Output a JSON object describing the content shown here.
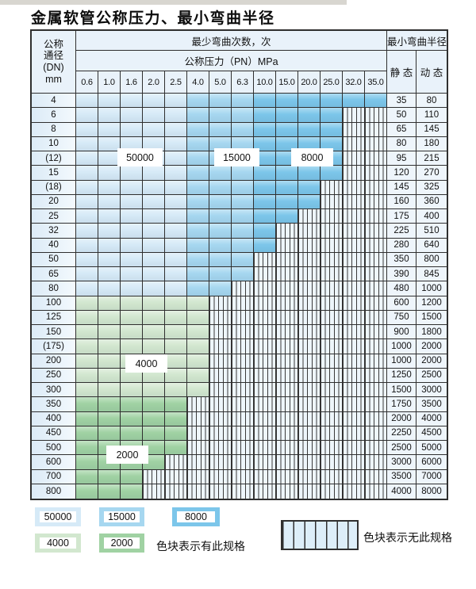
{
  "title": "金属软管公称压力、最小弯曲半径",
  "table": {
    "header": {
      "dn_lines": [
        "公称",
        "通径",
        "(DN)",
        "mm"
      ],
      "bend_cycles_label": "最少弯曲次数，次",
      "pressure_label": "公称压力（PN）MPa",
      "radius_label": "最小弯曲半径",
      "static_label": "静 态",
      "dynamic_label": "动 态"
    },
    "pressure_columns": [
      "0.6",
      "1.0",
      "1.6",
      "2.0",
      "2.5",
      "4.0",
      "5.0",
      "6.3",
      "10.0",
      "15.0",
      "20.0",
      "25.0",
      "32.0",
      "35.0"
    ],
    "blue_zones": [
      {
        "label": "50000",
        "from": 1,
        "to": 5
      },
      {
        "label": "15000",
        "from": 6,
        "to": 8
      },
      {
        "label": "8000",
        "from": 9,
        "to": 14
      }
    ],
    "rows": [
      {
        "dn": "4",
        "covered": 14,
        "scheme": "blue",
        "static": "35",
        "dynamic": "80"
      },
      {
        "dn": "6",
        "covered": 12,
        "scheme": "blue",
        "static": "50",
        "dynamic": "110"
      },
      {
        "dn": "8",
        "covered": 12,
        "scheme": "blue",
        "static": "65",
        "dynamic": "145"
      },
      {
        "dn": "10",
        "covered": 12,
        "scheme": "blue",
        "static": "80",
        "dynamic": "180"
      },
      {
        "dn": "(12)",
        "covered": 12,
        "scheme": "blue",
        "static": "95",
        "dynamic": "215"
      },
      {
        "dn": "15",
        "covered": 12,
        "scheme": "blue",
        "static": "120",
        "dynamic": "270"
      },
      {
        "dn": "(18)",
        "covered": 11,
        "scheme": "blue",
        "static": "145",
        "dynamic": "325"
      },
      {
        "dn": "20",
        "covered": 11,
        "scheme": "blue",
        "static": "160",
        "dynamic": "360"
      },
      {
        "dn": "25",
        "covered": 10,
        "scheme": "blue",
        "static": "175",
        "dynamic": "400"
      },
      {
        "dn": "32",
        "covered": 9,
        "scheme": "blue",
        "static": "225",
        "dynamic": "510"
      },
      {
        "dn": "40",
        "covered": 9,
        "scheme": "blue",
        "static": "280",
        "dynamic": "640"
      },
      {
        "dn": "50",
        "covered": 8,
        "scheme": "blue",
        "static": "350",
        "dynamic": "800"
      },
      {
        "dn": "65",
        "covered": 8,
        "scheme": "blue",
        "static": "390",
        "dynamic": "845"
      },
      {
        "dn": "80",
        "covered": 7,
        "scheme": "blue",
        "static": "480",
        "dynamic": "1000"
      },
      {
        "dn": "100",
        "covered": 6,
        "scheme": "4000",
        "static": "600",
        "dynamic": "1200"
      },
      {
        "dn": "125",
        "covered": 6,
        "scheme": "4000",
        "static": "750",
        "dynamic": "1500"
      },
      {
        "dn": "150",
        "covered": 6,
        "scheme": "4000",
        "static": "900",
        "dynamic": "1800"
      },
      {
        "dn": "(175)",
        "covered": 6,
        "scheme": "4000",
        "static": "1000",
        "dynamic": "2000"
      },
      {
        "dn": "200",
        "covered": 6,
        "scheme": "4000",
        "static": "1000",
        "dynamic": "2000"
      },
      {
        "dn": "250",
        "covered": 6,
        "scheme": "4000",
        "static": "1250",
        "dynamic": "2500"
      },
      {
        "dn": "300",
        "covered": 6,
        "scheme": "4000",
        "static": "1500",
        "dynamic": "3000"
      },
      {
        "dn": "350",
        "covered": 5,
        "scheme": "2000",
        "static": "1750",
        "dynamic": "3500"
      },
      {
        "dn": "400",
        "covered": 5,
        "scheme": "2000",
        "static": "2000",
        "dynamic": "4000"
      },
      {
        "dn": "450",
        "covered": 5,
        "scheme": "2000",
        "static": "2250",
        "dynamic": "4500"
      },
      {
        "dn": "500",
        "covered": 5,
        "scheme": "2000",
        "static": "2500",
        "dynamic": "5000"
      },
      {
        "dn": "600",
        "covered": 4,
        "scheme": "2000",
        "static": "3000",
        "dynamic": "6000"
      },
      {
        "dn": "700",
        "covered": 3,
        "scheme": "2000",
        "static": "3500",
        "dynamic": "7000"
      },
      {
        "dn": "800",
        "covered": 3,
        "scheme": "2000",
        "static": "4000",
        "dynamic": "8000"
      }
    ]
  },
  "overlays": {
    "v50000": "50000",
    "v15000": "15000",
    "v8000": "8000",
    "v4000": "4000",
    "v2000": "2000"
  },
  "legend": {
    "items": [
      {
        "label": "50000"
      },
      {
        "label": "15000"
      },
      {
        "label": "8000"
      },
      {
        "label": "4000"
      },
      {
        "label": "2000"
      }
    ],
    "has_spec_text": "色块表示有此规格",
    "no_spec_text": "色块表示无此规格"
  },
  "colors": {
    "50000": "#d6eaf7",
    "15000": "#a6d7f0",
    "8000": "#7cc6ea",
    "4000": "#d2e7cf",
    "2000": "#a0d2a3",
    "header_bg": "#e9f2fa",
    "value_bg": "#eef5fb",
    "hatch_bg": "#eef6fb",
    "border": "#2f2f2f",
    "top_bar": "#d8d6d0"
  }
}
